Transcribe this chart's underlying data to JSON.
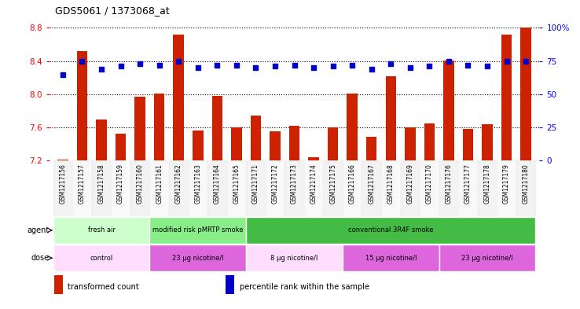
{
  "title": "GDS5061 / 1373068_at",
  "samples": [
    "GSM1217156",
    "GSM1217157",
    "GSM1217158",
    "GSM1217159",
    "GSM1217160",
    "GSM1217161",
    "GSM1217162",
    "GSM1217163",
    "GSM1217164",
    "GSM1217165",
    "GSM1217171",
    "GSM1217172",
    "GSM1217173",
    "GSM1217174",
    "GSM1217175",
    "GSM1217166",
    "GSM1217167",
    "GSM1217168",
    "GSM1217169",
    "GSM1217170",
    "GSM1217176",
    "GSM1217177",
    "GSM1217178",
    "GSM1217179",
    "GSM1217180"
  ],
  "bar_values": [
    7.21,
    8.52,
    7.7,
    7.53,
    7.97,
    8.01,
    8.72,
    7.56,
    7.98,
    7.6,
    7.74,
    7.55,
    7.62,
    7.24,
    7.6,
    8.01,
    7.49,
    8.22,
    7.6,
    7.65,
    8.41,
    7.58,
    7.64,
    8.72,
    8.8
  ],
  "dot_values": [
    65,
    75,
    69,
    71,
    73,
    72,
    75,
    70,
    72,
    72,
    70,
    71,
    72,
    70,
    71,
    72,
    69,
    73,
    70,
    71,
    75,
    72,
    71,
    75,
    75
  ],
  "ylim_left": [
    7.2,
    8.8
  ],
  "ylim_right": [
    0,
    100
  ],
  "yticks_left": [
    7.2,
    7.6,
    8.0,
    8.4,
    8.8
  ],
  "yticks_right": [
    0,
    25,
    50,
    75,
    100
  ],
  "ytick_right_labels": [
    "0",
    "25",
    "50",
    "75",
    "100%"
  ],
  "bar_color": "#cc2200",
  "dot_color": "#0000cc",
  "agent_groups": [
    {
      "label": "fresh air",
      "start": 0,
      "end": 5,
      "color": "#ccffcc"
    },
    {
      "label": "modified risk pMRTP smoke",
      "start": 5,
      "end": 10,
      "color": "#88ee88"
    },
    {
      "label": "conventional 3R4F smoke",
      "start": 10,
      "end": 25,
      "color": "#44bb44"
    }
  ],
  "dose_groups": [
    {
      "label": "control",
      "start": 0,
      "end": 5,
      "color": "#ffddff"
    },
    {
      "label": "23 μg nicotine/l",
      "start": 5,
      "end": 10,
      "color": "#dd66dd"
    },
    {
      "label": "8 μg nicotine/l",
      "start": 10,
      "end": 15,
      "color": "#ffddff"
    },
    {
      "label": "15 μg nicotine/l",
      "start": 15,
      "end": 20,
      "color": "#dd66dd"
    },
    {
      "label": "23 μg nicotine/l",
      "start": 20,
      "end": 25,
      "color": "#dd66dd"
    }
  ],
  "legend_items": [
    {
      "label": "transformed count",
      "color": "#cc2200"
    },
    {
      "label": "percentile rank within the sample",
      "color": "#0000cc"
    }
  ]
}
